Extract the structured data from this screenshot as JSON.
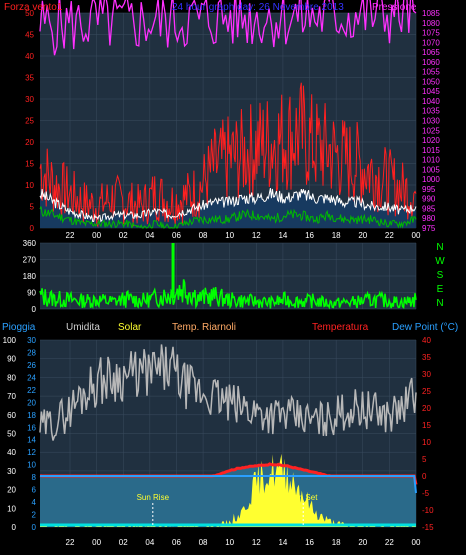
{
  "header": {
    "wind_label": "Forza vento1",
    "title": "24 hour graph day:  26 Novembre 2013",
    "pressure_label": "Pressione"
  },
  "direction_labels": [
    "N",
    "W",
    "S",
    "E",
    "N"
  ],
  "lower_header": {
    "rain_label": "Pioggia",
    "humidity_label": "Umidita",
    "solar_label": "Solar",
    "temp_label": "Temp. Riarnoli",
    "temperature_label": "Temperatura",
    "dewpoint_label": "Dew Point (°C)"
  },
  "annotations": {
    "sunrise": "Sun Rise",
    "sunset": "Sun Set"
  },
  "colors": {
    "wind": "#ff2020",
    "avg_wind": "#ffffff",
    "gust_low": "#00bb00",
    "pressure": "#ff30ff",
    "direction": "#00ff00",
    "humidity": "#b8b8b8",
    "temperature": "#ff2222",
    "dewpoint": "#2aa0ff",
    "solar": "#ffff30",
    "rain": "#00e0e0",
    "title": "#3333ff",
    "plot_bg": "#203040",
    "temp_fill": "#2a6a8a"
  },
  "x_tick_labels": [
    "22",
    "00",
    "02",
    "04",
    "06",
    "08",
    "10",
    "12",
    "14",
    "16",
    "18",
    "20",
    "22",
    "00"
  ],
  "chart_data": [
    {
      "type": "line",
      "name": "wind-pressure",
      "title": "24 hour graph day:  26 Novembre 2013",
      "x": [
        0,
        1,
        2,
        3,
        4,
        5,
        6,
        7,
        8,
        9,
        10,
        11,
        12,
        13,
        14,
        15,
        16,
        17,
        18,
        19,
        20,
        21,
        22,
        23,
        24,
        25,
        26
      ],
      "x_tick_labels": [
        "22",
        "00",
        "02",
        "04",
        "06",
        "08",
        "10",
        "12",
        "14",
        "16",
        "18",
        "20",
        "22",
        "00"
      ],
      "y_left_range": [
        0,
        50
      ],
      "y_left_ticks": [
        0,
        5,
        10,
        15,
        20,
        25,
        30,
        35,
        40,
        45,
        50
      ],
      "y_right_range": [
        975,
        1085
      ],
      "y_right_ticks": [
        975,
        980,
        985,
        990,
        995,
        1000,
        1005,
        1010,
        1015,
        1020,
        1025,
        1030,
        1035,
        1040,
        1045,
        1050,
        1055,
        1060,
        1065,
        1070,
        1075,
        1080,
        1085
      ],
      "series": [
        {
          "name": "Forza vento1",
          "axis": "left",
          "values": [
            14,
            10,
            8,
            6,
            5,
            7,
            6,
            5,
            8,
            6,
            7,
            9,
            14,
            16,
            17,
            19,
            20,
            21,
            22,
            19,
            18,
            16,
            15,
            13,
            11,
            9,
            8
          ]
        },
        {
          "name": "avg",
          "axis": "left",
          "values": [
            8,
            6,
            4,
            3,
            2,
            3,
            3,
            3,
            4,
            3,
            4,
            5,
            6,
            6,
            7,
            7,
            8,
            7,
            8,
            7,
            7,
            6,
            6,
            5,
            5,
            4,
            5
          ]
        },
        {
          "name": "low",
          "axis": "left",
          "values": [
            4,
            3,
            2,
            1,
            1,
            1,
            1,
            0,
            1,
            0,
            1,
            2,
            2,
            2,
            3,
            3,
            2,
            3,
            3,
            2,
            3,
            2,
            2,
            2,
            1,
            1,
            2
          ]
        },
        {
          "name": "Pressione",
          "axis": "right",
          "values": [
            1078.5,
            1079,
            1079.5,
            1079.8,
            1080.2,
            1080.1,
            1080,
            1080.2,
            1080.5,
            1081,
            1081.5,
            1081.8,
            1082,
            1082.5,
            1082.7,
            1082.8,
            1083,
            1083,
            1083.2,
            1083.3,
            1083.5,
            1083.6,
            1083.8,
            1084,
            1084.5,
            1084.8,
            1085
          ]
        }
      ]
    },
    {
      "type": "line",
      "name": "wind-direction",
      "x": [
        0,
        1,
        2,
        3,
        4,
        5,
        6,
        7,
        8,
        9,
        10,
        11,
        12,
        13,
        14,
        15,
        16,
        17,
        18,
        19,
        20,
        21,
        22,
        23,
        24,
        25,
        26
      ],
      "y_range": [
        0,
        360
      ],
      "y_ticks": [
        0,
        90,
        180,
        270,
        360
      ],
      "spike": {
        "x": 9.2,
        "value": 360
      },
      "series": [
        {
          "name": "direction",
          "values": [
            70,
            55,
            50,
            45,
            50,
            40,
            55,
            45,
            60,
            80,
            120,
            60,
            70,
            50,
            45,
            40,
            35,
            50,
            40,
            45,
            30,
            35,
            40,
            50,
            45,
            35,
            50
          ]
        }
      ]
    },
    {
      "type": "line",
      "name": "humidity-temperature",
      "x": [
        0,
        1,
        2,
        3,
        4,
        5,
        6,
        7,
        8,
        9,
        10,
        11,
        12,
        13,
        14,
        15,
        16,
        17,
        18,
        19,
        20,
        21,
        22,
        23,
        24,
        25,
        26
      ],
      "y_left_range": [
        0,
        100
      ],
      "y_left_ticks": [
        0,
        10,
        20,
        30,
        40,
        50,
        60,
        70,
        80,
        90,
        100
      ],
      "y_mid_range": [
        0,
        30
      ],
      "y_mid_ticks": [
        0,
        2,
        4,
        6,
        8,
        10,
        12,
        14,
        16,
        18,
        20,
        22,
        24,
        26,
        28,
        30
      ],
      "y_right_range": [
        -15,
        40
      ],
      "y_right_ticks": [
        -15,
        -10,
        -5,
        0,
        5,
        10,
        15,
        20,
        25,
        30,
        35,
        40
      ],
      "series": [
        {
          "name": "Umidita",
          "axis": "left",
          "values": [
            53,
            56,
            62,
            72,
            78,
            80,
            81,
            82,
            83,
            85,
            76,
            72,
            70,
            66,
            64,
            62,
            60,
            60,
            58,
            57,
            58,
            62,
            64,
            62,
            60,
            63,
            72
          ]
        },
        {
          "name": "Temperatura",
          "axis": "right",
          "values": [
            0,
            -0.5,
            -1,
            -1.2,
            -1.2,
            -1.5,
            -1.5,
            -2,
            -2,
            -2,
            -1,
            -0.5,
            0,
            1.5,
            2.5,
            3,
            3.5,
            3,
            2,
            1,
            0,
            -0.5,
            -1,
            -1.5,
            -1.5,
            -2,
            -2.5
          ]
        },
        {
          "name": "Dew Point (°C)",
          "axis": "right",
          "values": [
            -9,
            -8,
            -7,
            -6,
            -6,
            -5,
            -5,
            -5,
            -5,
            -6,
            -7,
            -7,
            -8,
            -8,
            -7.5,
            -7,
            -6,
            -6,
            -6.5,
            -7,
            -7.5,
            -7,
            -6.5,
            -7,
            -7,
            -6,
            -5
          ]
        },
        {
          "name": "Solar",
          "axis": "left",
          "values": [
            0,
            0,
            0,
            0,
            0,
            0,
            0,
            0,
            0,
            0,
            0,
            0,
            0,
            2,
            8,
            25,
            30,
            30,
            20,
            8,
            3,
            1,
            0,
            0,
            0,
            0,
            0
          ]
        },
        {
          "name": "Pioggia",
          "axis": "left",
          "values": [
            0,
            0,
            0,
            0,
            0,
            0,
            0,
            0,
            0,
            0,
            0,
            0,
            0,
            0,
            0,
            0,
            0,
            0,
            0,
            0,
            0,
            0,
            0,
            0,
            0,
            0,
            0
          ]
        }
      ],
      "sunrise_x": 7.8,
      "sunset_x": 18.2
    }
  ]
}
